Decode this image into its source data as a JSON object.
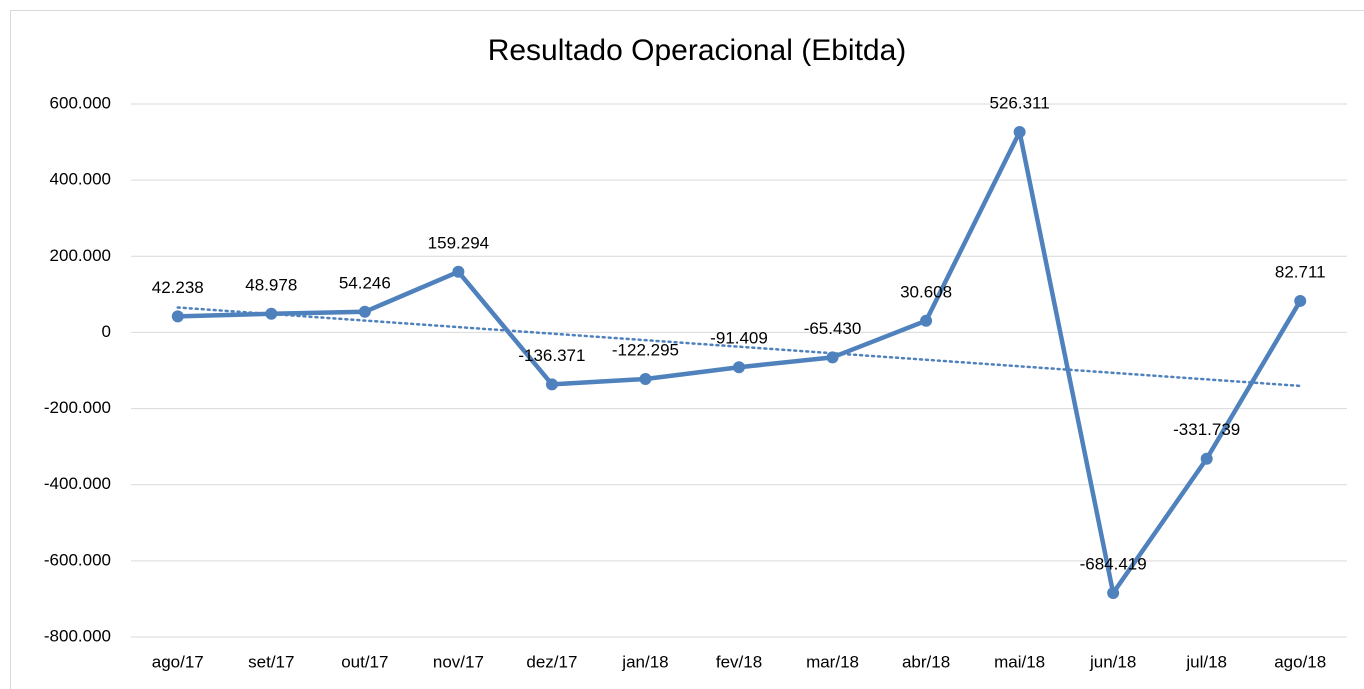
{
  "chart_data": {
    "type": "line",
    "title": "Resultado Operacional (Ebitda)",
    "categories": [
      "ago/17",
      "set/17",
      "out/17",
      "nov/17",
      "dez/17",
      "jan/18",
      "fev/18",
      "mar/18",
      "abr/18",
      "mai/18",
      "jun/18",
      "jul/18",
      "ago/18"
    ],
    "series": [
      {
        "name": "Resultado Operacional (Ebitda)",
        "color": "#4f81bd",
        "values": [
          42238,
          48978,
          54246,
          159294,
          -136371,
          -122295,
          -91409,
          -65430,
          30608,
          526311,
          -684419,
          -331739,
          82711
        ],
        "value_labels": [
          "42.238",
          "48.978",
          "54.246",
          "159.294",
          "-136.371",
          "-122.295",
          "-91.409",
          "-65.430",
          "30.608",
          "526.311",
          "-684.419",
          "-331.739",
          "82.711"
        ]
      }
    ],
    "ylim": [
      -800000,
      600000
    ],
    "yticks": [
      {
        "value": -800000,
        "label": "-800.000"
      },
      {
        "value": -600000,
        "label": "-600.000"
      },
      {
        "value": -400000,
        "label": "-400.000"
      },
      {
        "value": -200000,
        "label": "-200.000"
      },
      0,
      {
        "value": 200000,
        "label": "200.000"
      },
      {
        "value": 400000,
        "label": "400.000"
      },
      {
        "value": 600000,
        "label": "600.000"
      }
    ],
    "grid": true,
    "trendline": "linear"
  }
}
